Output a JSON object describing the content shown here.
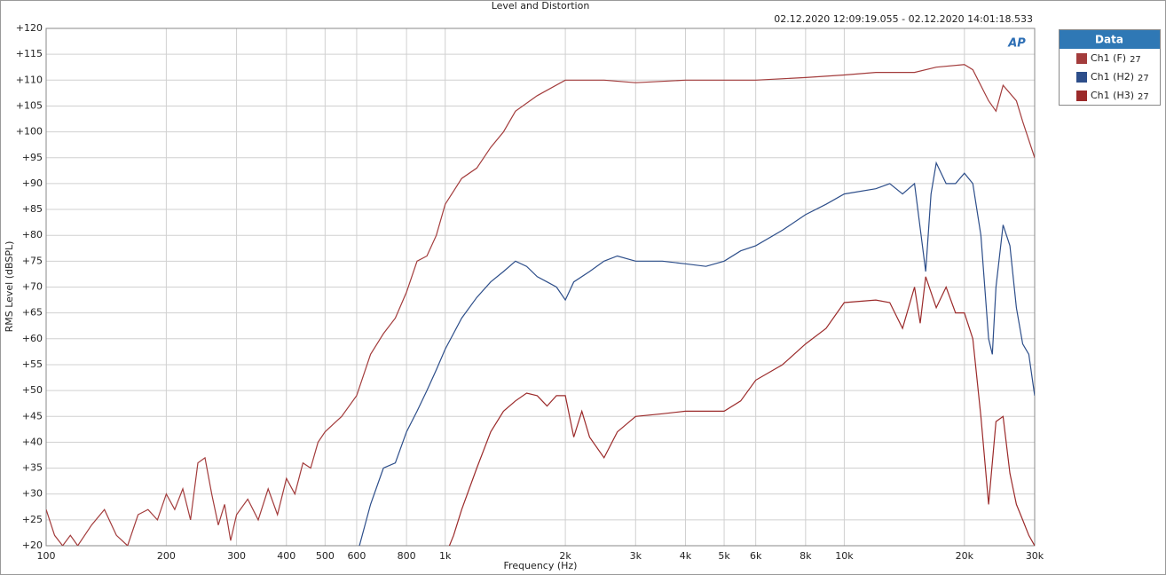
{
  "chart_data": {
    "type": "line",
    "title": "Level and Distortion",
    "subtitle": "02.12.2020 12:09:19.055 - 02.12.2020 14:01:18.533",
    "logo": "AP",
    "x_label": "Frequency (Hz)",
    "y_label": "RMS Level (dBSPL)",
    "legend_title": "Data",
    "legend_position": "right",
    "xscale": "log",
    "grid": true,
    "xlim": [
      100,
      30000
    ],
    "ylim": [
      20,
      120
    ],
    "xticks": [
      100,
      200,
      300,
      400,
      500,
      600,
      800,
      {
        "value": 1000,
        "label": "1k"
      },
      {
        "value": 2000,
        "label": "2k"
      },
      {
        "value": 3000,
        "label": "3k"
      },
      {
        "value": 4000,
        "label": "4k"
      },
      {
        "value": 5000,
        "label": "5k"
      },
      {
        "value": 6000,
        "label": "6k"
      },
      {
        "value": 8000,
        "label": "8k"
      },
      {
        "value": 10000,
        "label": "10k"
      },
      {
        "value": 20000,
        "label": "20k"
      },
      {
        "value": 30000,
        "label": "30k"
      }
    ],
    "yticks": [
      {
        "value": 120,
        "label": "+120"
      },
      {
        "value": 115,
        "label": "+115"
      },
      {
        "value": 110,
        "label": "+110"
      },
      {
        "value": 105,
        "label": "+105"
      },
      {
        "value": 100,
        "label": "+100"
      },
      {
        "value": 95,
        "label": "+95"
      },
      {
        "value": 90,
        "label": "+90"
      },
      {
        "value": 85,
        "label": "+85"
      },
      {
        "value": 80,
        "label": "+80"
      },
      {
        "value": 75,
        "label": "+75"
      },
      {
        "value": 70,
        "label": "+70"
      },
      {
        "value": 65,
        "label": "+65"
      },
      {
        "value": 60,
        "label": "+60"
      },
      {
        "value": 55,
        "label": "+55"
      },
      {
        "value": 50,
        "label": "+50"
      },
      {
        "value": 45,
        "label": "+45"
      },
      {
        "value": 40,
        "label": "+40"
      },
      {
        "value": 35,
        "label": "+35"
      },
      {
        "value": 30,
        "label": "+30"
      },
      {
        "value": 25,
        "label": "+25"
      },
      {
        "value": 20,
        "label": "+20"
      }
    ],
    "series": [
      {
        "name": "Ch1 (F)",
        "label_suffix": "27",
        "color": "#a33c3c",
        "x": [
          100,
          105,
          110,
          115,
          120,
          130,
          140,
          150,
          160,
          170,
          180,
          190,
          200,
          210,
          220,
          230,
          240,
          250,
          260,
          270,
          280,
          290,
          300,
          320,
          340,
          360,
          380,
          400,
          420,
          440,
          460,
          480,
          500,
          550,
          600,
          650,
          700,
          750,
          800,
          850,
          900,
          950,
          1000,
          1100,
          1200,
          1300,
          1400,
          1500,
          1700,
          2000,
          2500,
          3000,
          4000,
          5000,
          6000,
          8000,
          10000,
          12000,
          15000,
          17000,
          20000,
          21000,
          23000,
          24000,
          25000,
          27000,
          28000,
          30000
        ],
        "values": [
          27,
          22,
          20,
          22,
          20,
          24,
          27,
          22,
          20,
          26,
          27,
          25,
          30,
          27,
          31,
          25,
          36,
          37,
          30,
          24,
          28,
          21,
          26,
          29,
          25,
          31,
          26,
          33,
          30,
          36,
          35,
          40,
          42,
          45,
          49,
          57,
          61,
          64,
          69,
          75,
          76,
          80,
          86,
          91,
          93,
          97,
          100,
          104,
          107,
          110,
          110,
          109.5,
          110,
          110,
          110,
          110.5,
          111,
          111.5,
          111.5,
          112.5,
          113,
          112,
          106,
          104,
          109,
          106,
          102,
          95
        ]
      },
      {
        "name": "Ch1 (H2)",
        "label_suffix": "27",
        "color": "#2d4e8a",
        "x": [
          600,
          650,
          700,
          750,
          800,
          850,
          900,
          950,
          1000,
          1100,
          1200,
          1300,
          1400,
          1500,
          1600,
          1700,
          1800,
          1900,
          2000,
          2100,
          2300,
          2500,
          2700,
          3000,
          3500,
          4000,
          4500,
          5000,
          5500,
          6000,
          7000,
          8000,
          9000,
          10000,
          12000,
          13000,
          14000,
          15000,
          16000,
          16500,
          17000,
          18000,
          19000,
          20000,
          21000,
          22000,
          23000,
          23500,
          24000,
          25000,
          26000,
          27000,
          28000,
          29000,
          30000
        ],
        "values": [
          18,
          28,
          35,
          36,
          42,
          46,
          50,
          54,
          58,
          64,
          68,
          71,
          73,
          75,
          74,
          72,
          71,
          70,
          67.5,
          71,
          73,
          75,
          76,
          75,
          75,
          74.5,
          74,
          75,
          77,
          78,
          81,
          84,
          86,
          88,
          89,
          90,
          88,
          90,
          73,
          88,
          94,
          90,
          90,
          92,
          90,
          80,
          60,
          57,
          70,
          82,
          78,
          66,
          59,
          57,
          49
        ]
      },
      {
        "name": "Ch1 (H3)",
        "label_suffix": "27",
        "color": "#9b2a2a",
        "x": [
          1000,
          1050,
          1100,
          1200,
          1300,
          1400,
          1500,
          1600,
          1700,
          1800,
          1900,
          2000,
          2100,
          2200,
          2300,
          2500,
          2700,
          3000,
          3500,
          4000,
          4500,
          5000,
          5500,
          6000,
          7000,
          8000,
          9000,
          10000,
          12000,
          13000,
          14000,
          15000,
          15500,
          16000,
          17000,
          18000,
          19000,
          20000,
          21000,
          22000,
          23000,
          24000,
          25000,
          26000,
          27000,
          28000,
          29000,
          30000
        ],
        "values": [
          18,
          22,
          27,
          35,
          42,
          46,
          48,
          49.5,
          49,
          47,
          49,
          49,
          41,
          46,
          41,
          37,
          42,
          45,
          45.5,
          46,
          46,
          46,
          48,
          52,
          55,
          59,
          62,
          67,
          67.5,
          67,
          62,
          70,
          63,
          72,
          66,
          70,
          65,
          65,
          60,
          45,
          28,
          44,
          45,
          34,
          28,
          25,
          22,
          20
        ]
      }
    ]
  }
}
